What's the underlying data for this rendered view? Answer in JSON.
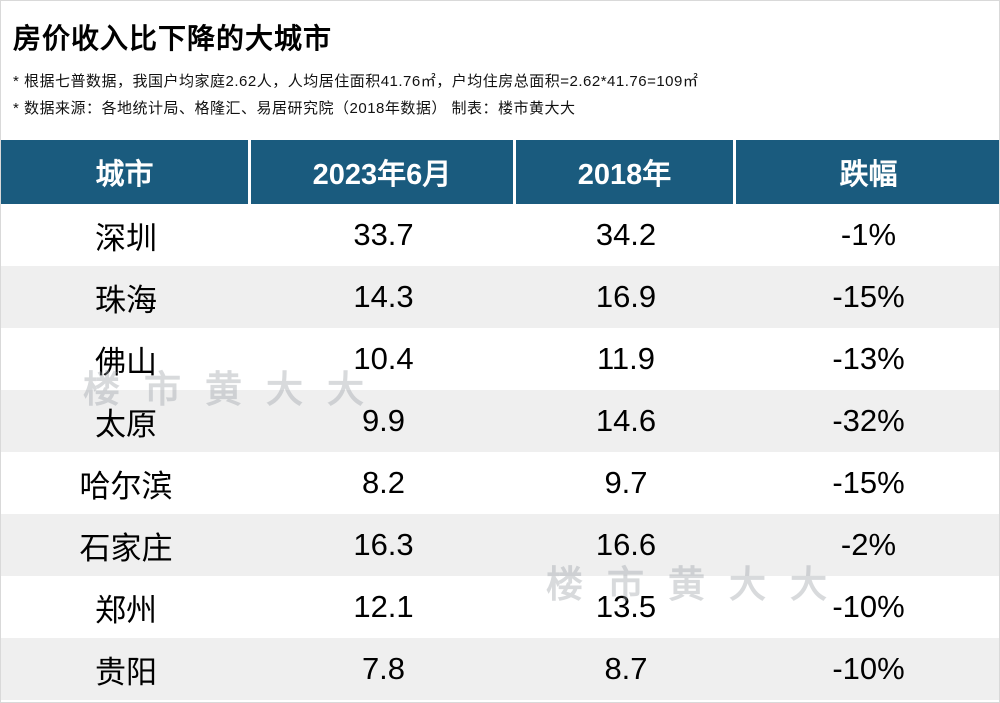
{
  "page": {
    "title": "房价收入比下降的大城市",
    "note1": "* 根据七普数据，我国户均家庭2.62人，人均居住面积41.76㎡，户均住房总面积=2.62*41.76=109㎡",
    "note2": "* 数据来源：各地统计局、格隆汇、易居研究院（2018年数据）   制表：楼市黄大大",
    "watermark": "楼市黄大大"
  },
  "colors": {
    "header_bg": "#1a5b7e",
    "row_alt_bg": "#efefef",
    "header_text": "#ffffff",
    "body_text": "#000000"
  },
  "chart_data": {
    "type": "table",
    "title": "房价收入比下降的大城市",
    "columns": [
      "城市",
      "2023年6月",
      "2018年",
      "跌幅"
    ],
    "rows": [
      [
        "深圳",
        "33.7",
        "34.2",
        "-1%"
      ],
      [
        "珠海",
        "14.3",
        "16.9",
        "-15%"
      ],
      [
        "佛山",
        "10.4",
        "11.9",
        "-13%"
      ],
      [
        "太原",
        "9.9",
        "14.6",
        "-32%"
      ],
      [
        "哈尔滨",
        "8.2",
        "9.7",
        "-15%"
      ],
      [
        "石家庄",
        "16.3",
        "16.6",
        "-2%"
      ],
      [
        "郑州",
        "12.1",
        "13.5",
        "-10%"
      ],
      [
        "贵阳",
        "7.8",
        "8.7",
        "-10%"
      ]
    ]
  }
}
